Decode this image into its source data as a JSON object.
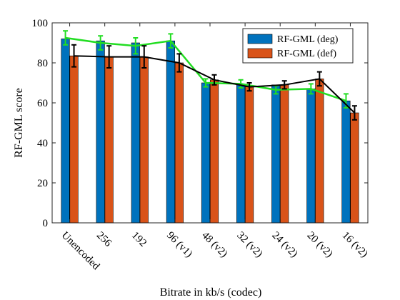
{
  "chart_data": {
    "type": "bar",
    "xlabel": "Bitrate in kb/s (codec)",
    "ylabel": "RF-GML score",
    "ylim": [
      0,
      100
    ],
    "yticks": [
      0,
      20,
      40,
      60,
      80,
      100
    ],
    "grid": false,
    "legend_position": "top-right",
    "categories": [
      "Unencoded",
      "256",
      "192",
      "96 (v1)",
      "48 (v2)",
      "32 (v2)",
      "24 (v2)",
      "20 (v2)",
      "16 (v2)"
    ],
    "series": [
      {
        "name": "RF-GML (deg)",
        "color": "#0072BD",
        "values": [
          92,
          91,
          90,
          91,
          70,
          69,
          69,
          67,
          61
        ],
        "line_values": [
          92.5,
          90.0,
          88.5,
          91.0,
          70.0,
          69.5,
          66.5,
          67.0,
          61.0
        ],
        "line_errors": [
          3.5,
          3.5,
          4.0,
          3.5,
          2.0,
          2.0,
          2.0,
          2.5,
          3.5
        ],
        "line_color": "#22DD22"
      },
      {
        "name": "RF-GML (def)",
        "color": "#D95319",
        "values": [
          83.5,
          83,
          83,
          80,
          71.5,
          68,
          69,
          72,
          55
        ],
        "errors": [
          5.5,
          5.5,
          5.5,
          4.5,
          2.5,
          2.0,
          2.0,
          3.5,
          3.5
        ],
        "line_color": "#000000"
      }
    ]
  }
}
